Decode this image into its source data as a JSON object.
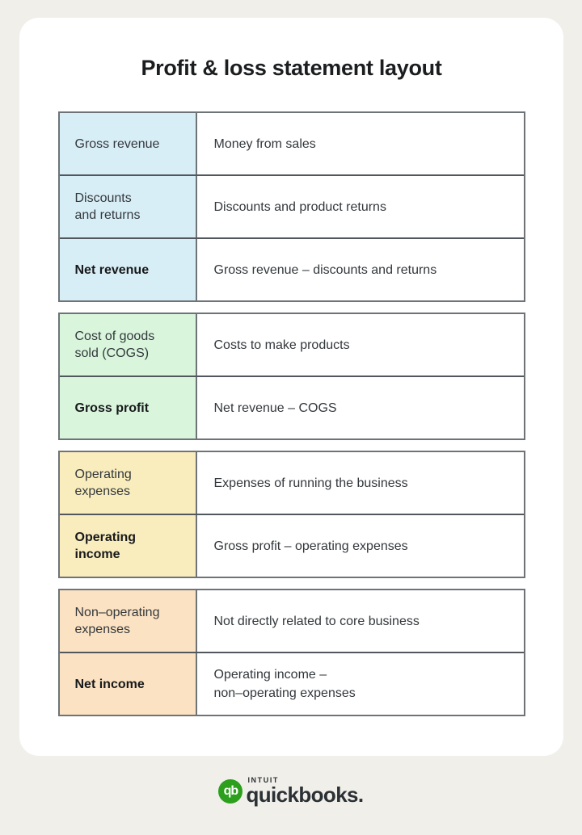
{
  "page": {
    "background_color": "#f0efea",
    "card_color": "#ffffff",
    "border_outer_color": "#6d7377",
    "border_inner_color": "#51575c"
  },
  "title": "Profit & loss statement layout",
  "groups": [
    {
      "name": "revenue-section",
      "color": "#d8eef6",
      "rows": [
        {
          "label": "Gross revenue",
          "bold": false,
          "description": "Money from sales"
        },
        {
          "label": "Discounts\nand returns",
          "bold": false,
          "description": "Discounts and product returns"
        },
        {
          "label": "Net revenue",
          "bold": true,
          "description": "Gross revenue – discounts and returns"
        }
      ]
    },
    {
      "name": "cogs-section",
      "color": "#d9f6dd",
      "rows": [
        {
          "label": "Cost of goods\nsold (COGS)",
          "bold": false,
          "description": "Costs to make products"
        },
        {
          "label": "Gross profit",
          "bold": true,
          "description": "Net revenue – COGS"
        }
      ]
    },
    {
      "name": "operating-section",
      "color": "#f9edbe",
      "rows": [
        {
          "label": "Operating\nexpenses",
          "bold": false,
          "description": "Expenses of running the business"
        },
        {
          "label": "Operating\nincome",
          "bold": true,
          "description": "Gross profit – operating expenses"
        }
      ]
    },
    {
      "name": "non-operating-section",
      "color": "#fbe2c2",
      "rows": [
        {
          "label": "Non–operating\nexpenses",
          "bold": false,
          "description": "Not directly related to core business"
        },
        {
          "label": "Net income",
          "bold": true,
          "description": "Operating income –\nnon–operating expenses"
        }
      ]
    }
  ],
  "footer": {
    "logo_monogram": "qb",
    "logo_color": "#2ca01c",
    "brand_small": "INTUIT",
    "brand_main": "quickbooks."
  }
}
